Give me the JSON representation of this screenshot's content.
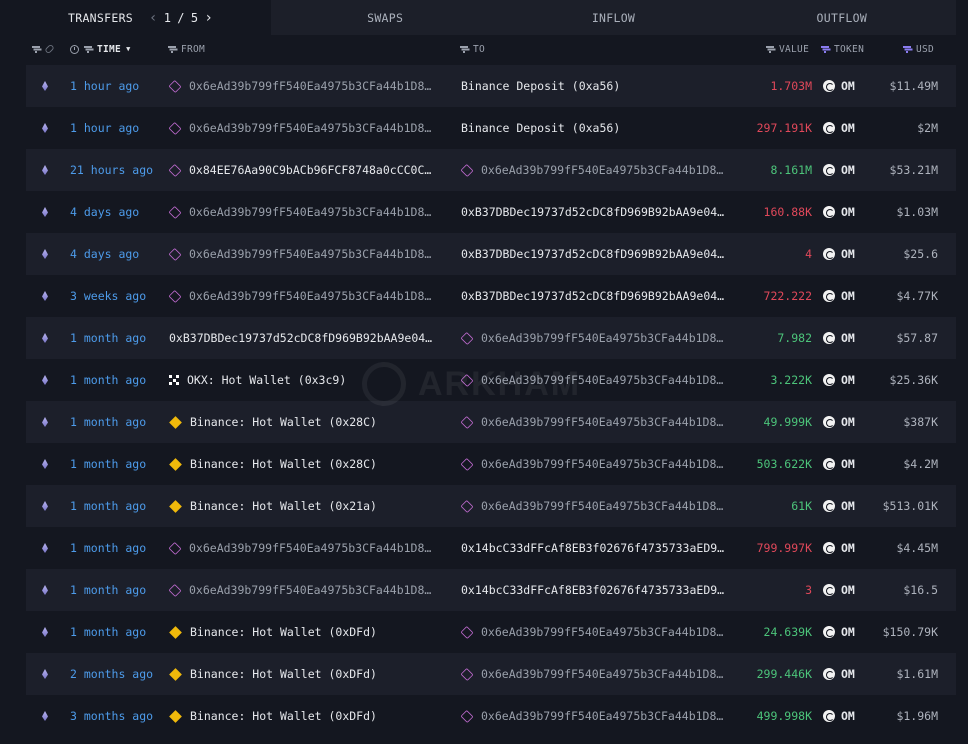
{
  "tabs": {
    "transfers": "TRANSFERS",
    "pager_current": "1",
    "pager_sep": "/",
    "pager_total": "5",
    "swaps": "SWAPS",
    "inflow": "INFLOW",
    "outflow": "OUTFLOW"
  },
  "columns": {
    "time": "TIME",
    "from": "FROM",
    "to": "TO",
    "value": "VALUE",
    "token": "TOKEN",
    "usd": "USD"
  },
  "watermark": "ARKHAM",
  "rows": [
    {
      "time": "1 hour ago",
      "from": {
        "icon": "wallet",
        "text": "0x6eAd39b799fF540Ea4975b3CFa44b1D8…",
        "entity": false
      },
      "to": {
        "icon": "",
        "text": "Binance Deposit (0xa56)",
        "entity": true
      },
      "value": "1.703M",
      "value_color": "red",
      "token": "OM",
      "usd": "$11.49M"
    },
    {
      "time": "1 hour ago",
      "from": {
        "icon": "wallet",
        "text": "0x6eAd39b799fF540Ea4975b3CFa44b1D8…",
        "entity": false
      },
      "to": {
        "icon": "",
        "text": "Binance Deposit (0xa56)",
        "entity": true
      },
      "value": "297.191K",
      "value_color": "red",
      "token": "OM",
      "usd": "$2M"
    },
    {
      "time": "21 hours ago",
      "from": {
        "icon": "wallet",
        "text": "0x84EE76Aa90C9bACb96FCF8748a0cCC0C…",
        "entity": true
      },
      "to": {
        "icon": "wallet",
        "text": "0x6eAd39b799fF540Ea4975b3CFa44b1D8…",
        "entity": false
      },
      "value": "8.161M",
      "value_color": "green",
      "token": "OM",
      "usd": "$53.21M"
    },
    {
      "time": "4 days ago",
      "from": {
        "icon": "wallet",
        "text": "0x6eAd39b799fF540Ea4975b3CFa44b1D8…",
        "entity": false
      },
      "to": {
        "icon": "",
        "text": "0xB37DBDec19737d52cDC8fD969B92bAA9e04…",
        "entity": true
      },
      "value": "160.88K",
      "value_color": "red",
      "token": "OM",
      "usd": "$1.03M"
    },
    {
      "time": "4 days ago",
      "from": {
        "icon": "wallet",
        "text": "0x6eAd39b799fF540Ea4975b3CFa44b1D8…",
        "entity": false
      },
      "to": {
        "icon": "",
        "text": "0xB37DBDec19737d52cDC8fD969B92bAA9e04…",
        "entity": true
      },
      "value": "4",
      "value_color": "red",
      "token": "OM",
      "usd": "$25.6"
    },
    {
      "time": "3 weeks ago",
      "from": {
        "icon": "wallet",
        "text": "0x6eAd39b799fF540Ea4975b3CFa44b1D8…",
        "entity": false
      },
      "to": {
        "icon": "",
        "text": "0xB37DBDec19737d52cDC8fD969B92bAA9e04…",
        "entity": true
      },
      "value": "722.222",
      "value_color": "red",
      "token": "OM",
      "usd": "$4.77K"
    },
    {
      "time": "1 month ago",
      "from": {
        "icon": "",
        "text": "0xB37DBDec19737d52cDC8fD969B92bAA9e04…",
        "entity": true
      },
      "to": {
        "icon": "wallet",
        "text": "0x6eAd39b799fF540Ea4975b3CFa44b1D8…",
        "entity": false
      },
      "value": "7.982",
      "value_color": "green",
      "token": "OM",
      "usd": "$57.87"
    },
    {
      "time": "1 month ago",
      "from": {
        "icon": "okx",
        "text": "OKX: Hot Wallet (0x3c9)",
        "entity": true
      },
      "to": {
        "icon": "wallet",
        "text": "0x6eAd39b799fF540Ea4975b3CFa44b1D8…",
        "entity": false
      },
      "value": "3.222K",
      "value_color": "green",
      "token": "OM",
      "usd": "$25.36K"
    },
    {
      "time": "1 month ago",
      "from": {
        "icon": "bnb",
        "text": "Binance: Hot Wallet (0x28C)",
        "entity": true
      },
      "to": {
        "icon": "wallet",
        "text": "0x6eAd39b799fF540Ea4975b3CFa44b1D8…",
        "entity": false
      },
      "value": "49.999K",
      "value_color": "green",
      "token": "OM",
      "usd": "$387K"
    },
    {
      "time": "1 month ago",
      "from": {
        "icon": "bnb",
        "text": "Binance: Hot Wallet (0x28C)",
        "entity": true
      },
      "to": {
        "icon": "wallet",
        "text": "0x6eAd39b799fF540Ea4975b3CFa44b1D8…",
        "entity": false
      },
      "value": "503.622K",
      "value_color": "green",
      "token": "OM",
      "usd": "$4.2M"
    },
    {
      "time": "1 month ago",
      "from": {
        "icon": "bnb",
        "text": "Binance: Hot Wallet (0x21a)",
        "entity": true
      },
      "to": {
        "icon": "wallet",
        "text": "0x6eAd39b799fF540Ea4975b3CFa44b1D8…",
        "entity": false
      },
      "value": "61K",
      "value_color": "green",
      "token": "OM",
      "usd": "$513.01K"
    },
    {
      "time": "1 month ago",
      "from": {
        "icon": "wallet",
        "text": "0x6eAd39b799fF540Ea4975b3CFa44b1D8…",
        "entity": false
      },
      "to": {
        "icon": "",
        "text": "0x14bcC33dFFcAf8EB3f02676f4735733aED9…",
        "entity": true
      },
      "value": "799.997K",
      "value_color": "red",
      "token": "OM",
      "usd": "$4.45M"
    },
    {
      "time": "1 month ago",
      "from": {
        "icon": "wallet",
        "text": "0x6eAd39b799fF540Ea4975b3CFa44b1D8…",
        "entity": false
      },
      "to": {
        "icon": "",
        "text": "0x14bcC33dFFcAf8EB3f02676f4735733aED9…",
        "entity": true
      },
      "value": "3",
      "value_color": "red",
      "token": "OM",
      "usd": "$16.5"
    },
    {
      "time": "1 month ago",
      "from": {
        "icon": "bnb",
        "text": "Binance: Hot Wallet (0xDFd)",
        "entity": true
      },
      "to": {
        "icon": "wallet",
        "text": "0x6eAd39b799fF540Ea4975b3CFa44b1D8…",
        "entity": false
      },
      "value": "24.639K",
      "value_color": "green",
      "token": "OM",
      "usd": "$150.79K"
    },
    {
      "time": "2 months ago",
      "from": {
        "icon": "bnb",
        "text": "Binance: Hot Wallet (0xDFd)",
        "entity": true
      },
      "to": {
        "icon": "wallet",
        "text": "0x6eAd39b799fF540Ea4975b3CFa44b1D8…",
        "entity": false
      },
      "value": "299.446K",
      "value_color": "green",
      "token": "OM",
      "usd": "$1.61M"
    },
    {
      "time": "3 months ago",
      "from": {
        "icon": "bnb",
        "text": "Binance: Hot Wallet (0xDFd)",
        "entity": true
      },
      "to": {
        "icon": "wallet",
        "text": "0x6eAd39b799fF540Ea4975b3CFa44b1D8…",
        "entity": false
      },
      "value": "499.998K",
      "value_color": "green",
      "token": "OM",
      "usd": "$1.96M"
    }
  ]
}
